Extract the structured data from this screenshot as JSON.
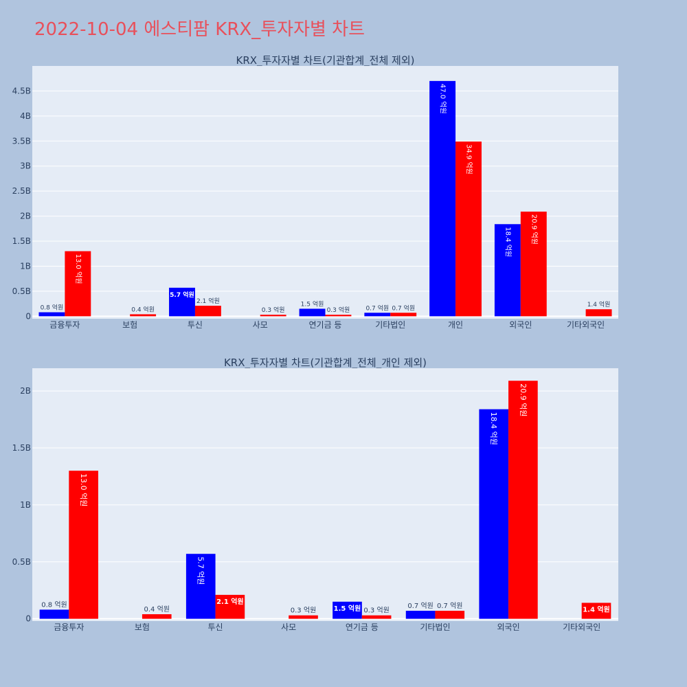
{
  "page_title": "2022-10-04 에스티팜 KRX_투자자별 차트",
  "colors": {
    "buy": "#0000ff",
    "sell": "#ff0000",
    "plot_bg": "#e5ecf6",
    "page_bg": "#b0c4de",
    "title": "#e8505b"
  },
  "chart_data": [
    {
      "type": "bar",
      "title": "KRX_투자자별 차트(기관합계_전체 제외)",
      "categories": [
        "금융투자",
        "보험",
        "투신",
        "사모",
        "연기금 등",
        "기타법인",
        "개인",
        "외국인",
        "기타외국인"
      ],
      "series": [
        {
          "color": "#0000ff",
          "values": [
            0.08,
            0,
            0.57,
            0,
            0.15,
            0.07,
            4.7,
            1.84,
            0
          ],
          "labels": [
            "0.8 억원",
            "",
            "5.7 억원",
            "",
            "1.5 억원",
            "0.7 억원",
            "47.0 억원",
            "18.4 억원",
            ""
          ]
        },
        {
          "color": "#ff0000",
          "values": [
            1.3,
            0.04,
            0.21,
            0.03,
            0.03,
            0.07,
            3.49,
            2.09,
            0.14
          ],
          "labels": [
            "13.0 억원",
            "0.4 억원",
            "2.1 억원",
            "0.3 억원",
            "0.3 억원",
            "0.7 억원",
            "34.9 억원",
            "20.9 억원",
            "1.4 억원"
          ]
        }
      ],
      "yticks": [
        0,
        0.5,
        1,
        1.5,
        2,
        2.5,
        3,
        3.5,
        4,
        4.5
      ],
      "ytick_labels": [
        "0",
        "0.5B",
        "1B",
        "1.5B",
        "2B",
        "2.5B",
        "3B",
        "3.5B",
        "4B",
        "4.5B"
      ],
      "ylim": [
        -0.05,
        5.0
      ],
      "grid": true
    },
    {
      "type": "bar",
      "title": "KRX_투자자별 차트(기관합계_전체_개인 제외)",
      "categories": [
        "금융투자",
        "보험",
        "투신",
        "사모",
        "연기금 등",
        "기타법인",
        "외국인",
        "기타외국인"
      ],
      "series": [
        {
          "color": "#0000ff",
          "values": [
            0.08,
            0,
            0.57,
            0,
            0.15,
            0.07,
            1.84,
            0
          ],
          "labels": [
            "0.8 억원",
            "",
            "5.7 억원",
            "",
            "1.5 억원",
            "0.7 억원",
            "18.4 억원",
            ""
          ]
        },
        {
          "color": "#ff0000",
          "values": [
            1.3,
            0.04,
            0.21,
            0.03,
            0.03,
            0.07,
            2.09,
            0.14
          ],
          "labels": [
            "13.0 억원",
            "0.4 억원",
            "2.1 억원",
            "0.3 억원",
            "0.3 억원",
            "0.7 억원",
            "20.9 억원",
            "1.4 억원"
          ]
        }
      ],
      "yticks": [
        0,
        0.5,
        1,
        1.5,
        2
      ],
      "ytick_labels": [
        "0",
        "0.5B",
        "1B",
        "1.5B",
        "2B"
      ],
      "ylim": [
        -0.02,
        2.2
      ],
      "grid": true
    }
  ]
}
